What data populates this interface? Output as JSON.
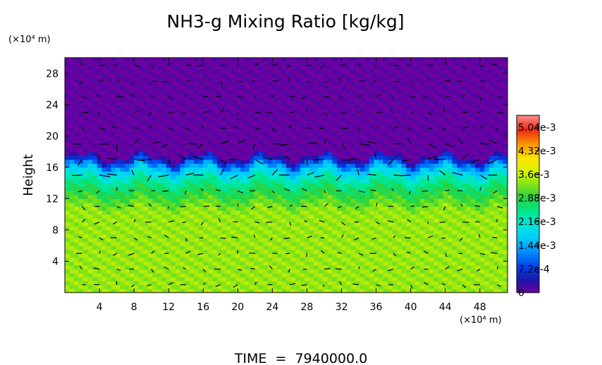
{
  "chart_data": {
    "type": "heatmap",
    "title": "NH3-g Mixing Ratio [kg/kg]",
    "ylabel": "Height",
    "y_units": "(×10⁴ m)",
    "x_units": "(×10⁴ m)",
    "footer": "TIME  =  7940000.0",
    "xlim": [
      0,
      51.2
    ],
    "ylim": [
      0,
      30
    ],
    "x_ticks": [
      "4",
      "8",
      "12",
      "16",
      "20",
      "24",
      "28",
      "32",
      "36",
      "40",
      "44",
      "48"
    ],
    "x_tick_values": [
      4,
      8,
      12,
      16,
      20,
      24,
      28,
      32,
      36,
      40,
      44,
      48
    ],
    "y_ticks": [
      "4",
      "8",
      "12",
      "16",
      "20",
      "24",
      "28"
    ],
    "y_tick_values": [
      4,
      8,
      12,
      16,
      20,
      24,
      28
    ],
    "colorbar": {
      "range": [
        0,
        0.0054
      ],
      "tick_labels": [
        "0",
        "7.2e-4",
        "1.44e-3",
        "2.16e-3",
        "2.88e-3",
        "3.6e-3",
        "4.32e-3",
        "5.04e-3"
      ],
      "tick_values": [
        0,
        0.00072,
        0.00144,
        0.00216,
        0.00288,
        0.0036,
        0.00432,
        0.00504
      ]
    },
    "field_profile": {
      "height": [
        0,
        10.5,
        12.5,
        14.0,
        15.5,
        16.5,
        17.5,
        30
      ],
      "mixing_ratio": [
        0.0034,
        0.0034,
        0.0029,
        0.0025,
        0.0018,
        0.001,
        0.0,
        0.0
      ]
    },
    "vectors": "wind vectors overlaid"
  }
}
